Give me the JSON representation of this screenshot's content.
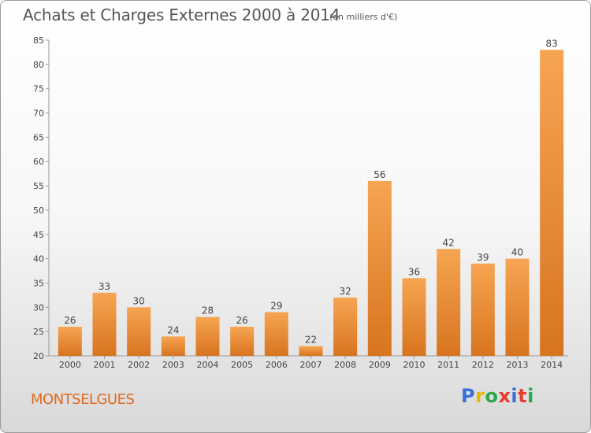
{
  "title": "Achats et Charges Externes 2000 à 2014",
  "unit": "(en milliers d'€)",
  "commune": "MONTSELGUES",
  "logo": {
    "text": "Proxiti",
    "letter_colors": [
      "#3a6fd8",
      "#e8b800",
      "#2aa84a",
      "#e63c2e",
      "#3a6fd8",
      "#e63c2e",
      "#2aa84a"
    ]
  },
  "colors": {
    "bar_light": "#f6a552",
    "bar_dark": "#d8741f",
    "commune": "#e06a1b"
  },
  "chart_data": {
    "type": "bar",
    "categories": [
      "2000",
      "2001",
      "2002",
      "2003",
      "2004",
      "2005",
      "2006",
      "2007",
      "2008",
      "2009",
      "2010",
      "2011",
      "2012",
      "2013",
      "2014"
    ],
    "values": [
      26,
      33,
      30,
      24,
      28,
      26,
      29,
      22,
      32,
      56,
      36,
      42,
      39,
      40,
      83
    ],
    "title": "Achats et Charges Externes 2000 à 2014",
    "subtitle": "(en milliers d'€)",
    "xlabel": "",
    "ylabel": "",
    "ylim": [
      20,
      85
    ],
    "yticks": [
      20,
      25,
      30,
      35,
      40,
      45,
      50,
      55,
      60,
      65,
      70,
      75,
      80,
      85
    ],
    "grid": false,
    "legend": "none"
  }
}
